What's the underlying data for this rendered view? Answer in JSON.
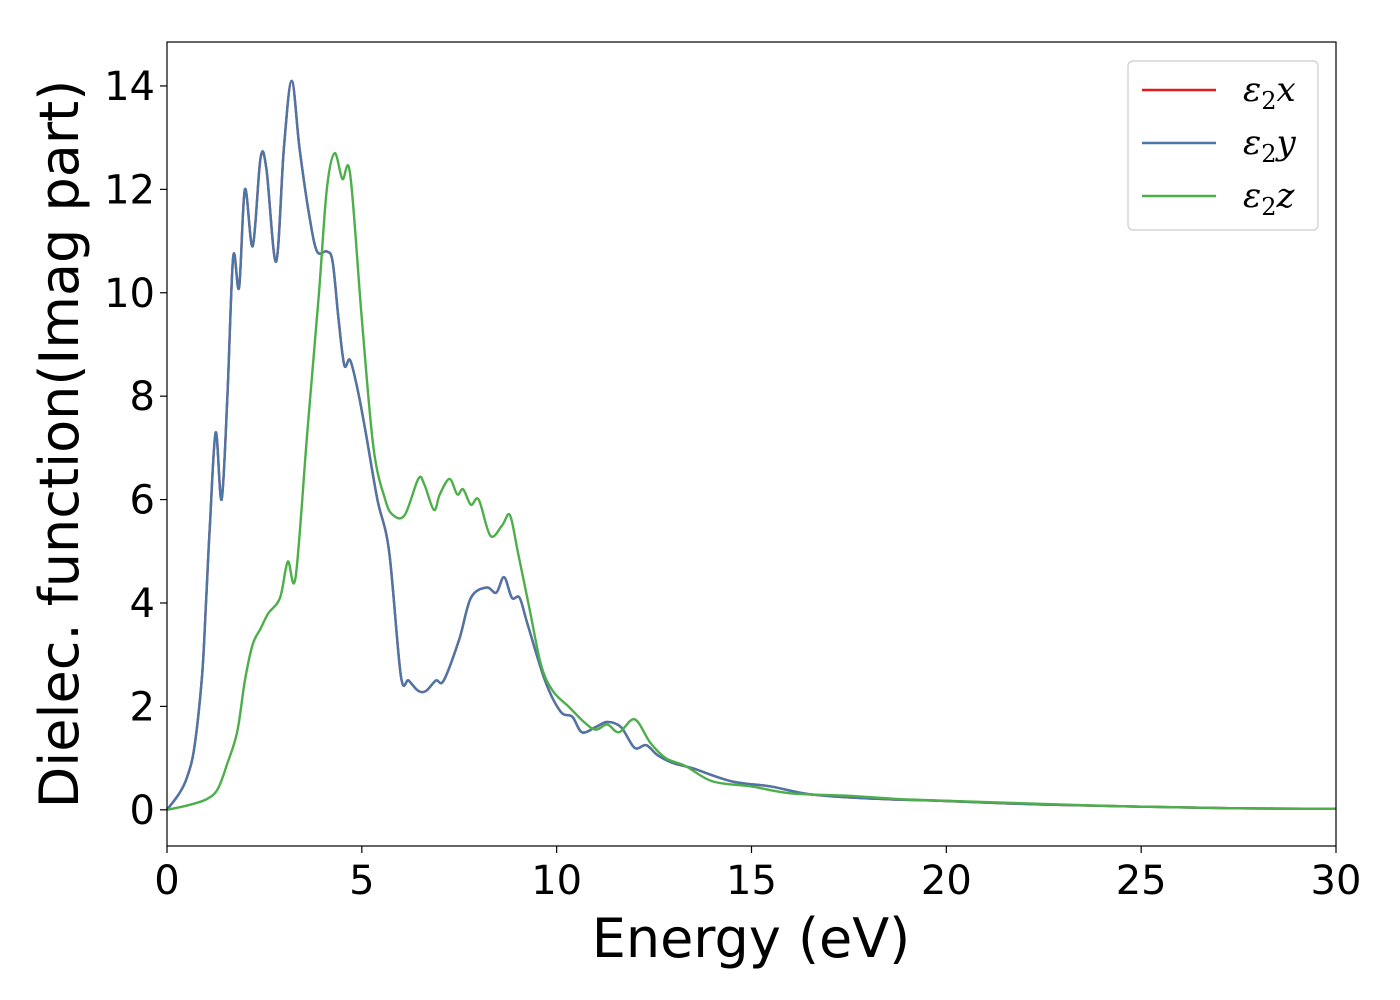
{
  "chart_data": {
    "type": "line",
    "xlabel": "Energy (eV)",
    "ylabel": "Dielec. function(Imag part)",
    "xlim": [
      0,
      30
    ],
    "ylim": [
      -0.7,
      14.85
    ],
    "xticks": [
      0,
      5,
      10,
      15,
      20,
      25,
      30
    ],
    "yticks": [
      0,
      2,
      4,
      6,
      8,
      10,
      12,
      14
    ],
    "grid": false,
    "legend_position": "top-right",
    "series": [
      {
        "name": "ε₂x",
        "legend_base": "ε",
        "legend_sub": "2",
        "legend_suffix": "x",
        "color": "#e41a1c",
        "x": [
          0,
          0.3,
          0.5,
          0.7,
          0.9,
          1.0,
          1.1,
          1.25,
          1.4,
          1.55,
          1.7,
          1.85,
          2.0,
          2.2,
          2.4,
          2.55,
          2.8,
          3.0,
          3.2,
          3.4,
          3.65,
          3.85,
          4.1,
          4.25,
          4.4,
          4.55,
          4.7,
          4.9,
          5.1,
          5.4,
          5.7,
          6.0,
          6.2,
          6.45,
          6.65,
          6.9,
          7.1,
          7.5,
          7.8,
          8.2,
          8.45,
          8.65,
          8.85,
          9.05,
          9.25,
          9.7,
          10.1,
          10.4,
          10.65,
          11.0,
          11.3,
          11.65,
          12.0,
          12.3,
          12.6,
          13.0,
          13.5,
          14.5,
          15.5,
          16.5,
          18,
          20,
          22.5,
          25,
          27.5,
          30
        ],
        "values": [
          0,
          0.3,
          0.6,
          1.2,
          2.6,
          4.0,
          5.5,
          7.3,
          6.0,
          8.0,
          10.7,
          10.1,
          12.0,
          10.9,
          12.6,
          12.4,
          10.6,
          12.8,
          14.1,
          12.8,
          11.5,
          10.8,
          10.8,
          10.6,
          9.5,
          8.6,
          8.7,
          8.1,
          7.3,
          6.0,
          5.0,
          2.6,
          2.5,
          2.3,
          2.3,
          2.5,
          2.5,
          3.3,
          4.1,
          4.3,
          4.2,
          4.5,
          4.1,
          4.1,
          3.6,
          2.5,
          1.9,
          1.8,
          1.5,
          1.6,
          1.7,
          1.6,
          1.2,
          1.25,
          1.05,
          0.9,
          0.8,
          0.55,
          0.45,
          0.3,
          0.22,
          0.17,
          0.1,
          0.06,
          0.03,
          0.02
        ]
      },
      {
        "name": "ε₂y",
        "legend_base": "ε",
        "legend_sub": "2",
        "legend_suffix": "y",
        "color": "#4a76a8",
        "x": [
          0,
          0.3,
          0.5,
          0.7,
          0.9,
          1.0,
          1.1,
          1.25,
          1.4,
          1.55,
          1.7,
          1.85,
          2.0,
          2.2,
          2.4,
          2.55,
          2.8,
          3.0,
          3.2,
          3.4,
          3.65,
          3.85,
          4.1,
          4.25,
          4.4,
          4.55,
          4.7,
          4.9,
          5.1,
          5.4,
          5.7,
          6.0,
          6.2,
          6.45,
          6.65,
          6.9,
          7.1,
          7.5,
          7.8,
          8.2,
          8.45,
          8.65,
          8.85,
          9.05,
          9.25,
          9.7,
          10.1,
          10.4,
          10.65,
          11.0,
          11.3,
          11.65,
          12.0,
          12.3,
          12.6,
          13.0,
          13.5,
          14.5,
          15.5,
          16.5,
          18,
          20,
          22.5,
          25,
          27.5,
          30
        ],
        "values": [
          0,
          0.3,
          0.6,
          1.2,
          2.6,
          4.0,
          5.5,
          7.3,
          6.0,
          8.0,
          10.7,
          10.1,
          12.0,
          10.9,
          12.6,
          12.4,
          10.6,
          12.8,
          14.1,
          12.8,
          11.5,
          10.8,
          10.8,
          10.6,
          9.5,
          8.6,
          8.7,
          8.1,
          7.3,
          6.0,
          5.0,
          2.6,
          2.5,
          2.3,
          2.3,
          2.5,
          2.5,
          3.3,
          4.1,
          4.3,
          4.2,
          4.5,
          4.1,
          4.1,
          3.6,
          2.5,
          1.9,
          1.8,
          1.5,
          1.6,
          1.7,
          1.6,
          1.2,
          1.25,
          1.05,
          0.9,
          0.8,
          0.55,
          0.45,
          0.3,
          0.22,
          0.17,
          0.1,
          0.06,
          0.03,
          0.02
        ]
      },
      {
        "name": "ε₂z",
        "legend_base": "ε",
        "legend_sub": "2",
        "legend_suffix": "z",
        "color": "#4daf4a",
        "x": [
          0,
          0.5,
          1.0,
          1.3,
          1.55,
          1.8,
          2.0,
          2.2,
          2.4,
          2.6,
          2.9,
          3.1,
          3.3,
          3.6,
          3.9,
          4.1,
          4.3,
          4.5,
          4.7,
          5.0,
          5.3,
          5.6,
          5.8,
          6.1,
          6.45,
          6.6,
          6.85,
          7.0,
          7.25,
          7.45,
          7.6,
          7.8,
          8.0,
          8.3,
          8.6,
          8.8,
          9.0,
          9.3,
          9.6,
          9.9,
          10.3,
          10.7,
          11.0,
          11.3,
          11.6,
          12.0,
          12.4,
          12.8,
          13.3,
          14.0,
          15.0,
          16.0,
          17.5,
          19,
          21,
          23,
          25,
          27.5,
          30
        ],
        "values": [
          0,
          0.08,
          0.2,
          0.4,
          0.9,
          1.5,
          2.5,
          3.2,
          3.5,
          3.8,
          4.1,
          4.8,
          4.5,
          7.3,
          10.0,
          12.0,
          12.7,
          12.2,
          12.3,
          9.5,
          7.0,
          6.0,
          5.7,
          5.7,
          6.4,
          6.3,
          5.8,
          6.1,
          6.4,
          6.1,
          6.2,
          5.9,
          6.0,
          5.3,
          5.5,
          5.7,
          5.0,
          3.9,
          2.8,
          2.3,
          2.0,
          1.7,
          1.55,
          1.65,
          1.5,
          1.75,
          1.3,
          1.0,
          0.85,
          0.55,
          0.45,
          0.32,
          0.27,
          0.2,
          0.15,
          0.1,
          0.06,
          0.03,
          0.02
        ]
      }
    ]
  }
}
